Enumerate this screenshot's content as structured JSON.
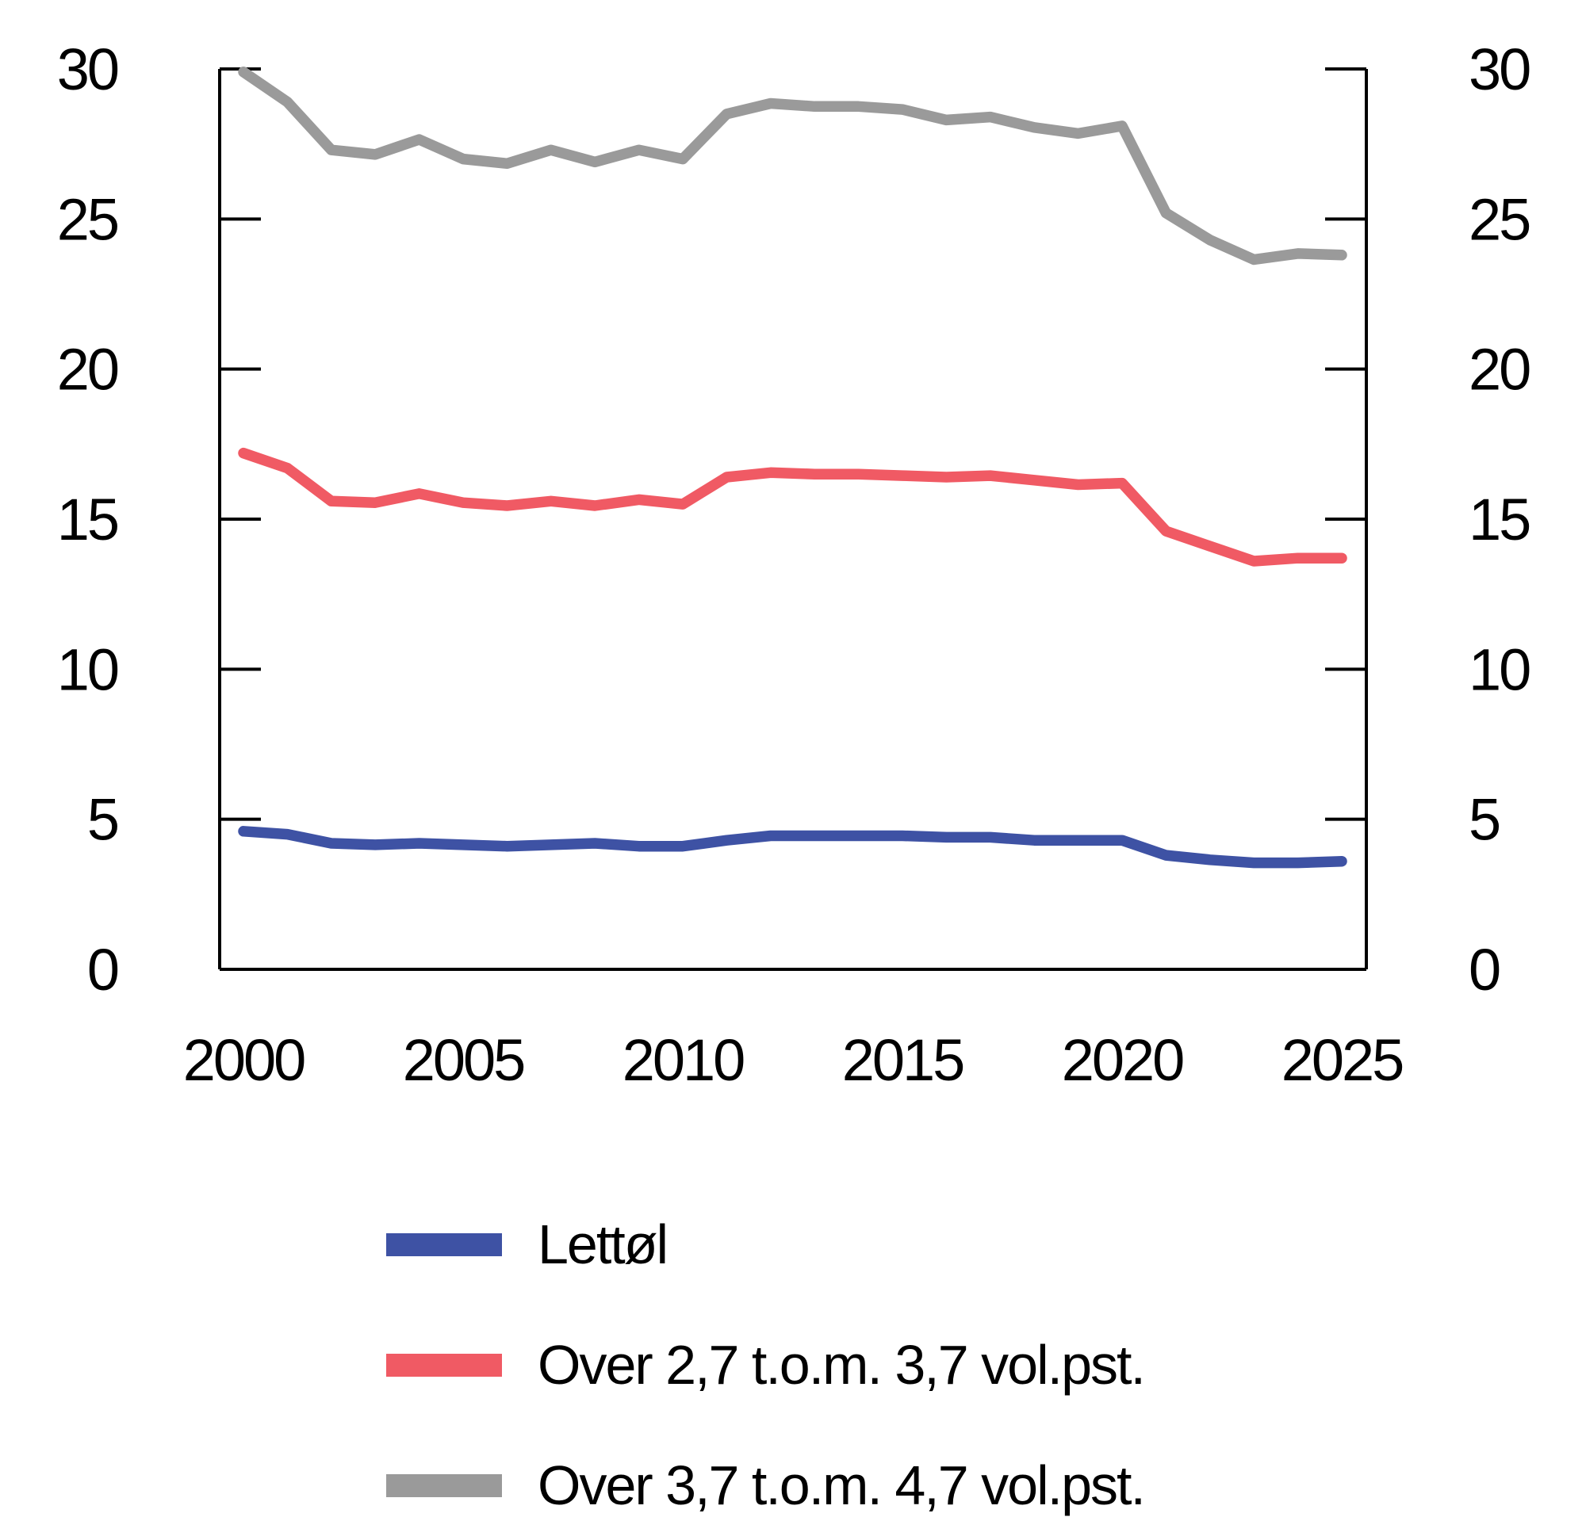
{
  "chart_data": {
    "type": "line",
    "title": "",
    "xlabel": "",
    "ylabel": "",
    "x": [
      2000,
      2001,
      2002,
      2003,
      2004,
      2005,
      2006,
      2007,
      2008,
      2009,
      2010,
      2011,
      2012,
      2013,
      2014,
      2015,
      2016,
      2017,
      2018,
      2019,
      2020,
      2021,
      2022,
      2023,
      2024,
      2025
    ],
    "series": [
      {
        "name": "Lettøl",
        "color": "#3E52A4",
        "values": [
          4.6,
          4.5,
          4.2,
          4.15,
          4.2,
          4.15,
          4.1,
          4.15,
          4.2,
          4.1,
          4.1,
          4.3,
          4.45,
          4.45,
          4.45,
          4.45,
          4.4,
          4.4,
          4.3,
          4.3,
          4.3,
          3.8,
          3.65,
          3.55,
          3.55,
          3.6
        ]
      },
      {
        "name": "Over 2,7 t.o.m. 3,7 vol.pst.",
        "color": "#F05A64",
        "values": [
          17.2,
          16.7,
          15.6,
          15.55,
          15.85,
          15.55,
          15.45,
          15.6,
          15.45,
          15.65,
          15.5,
          16.4,
          16.55,
          16.5,
          16.5,
          16.45,
          16.4,
          16.45,
          16.3,
          16.15,
          16.2,
          14.6,
          14.1,
          13.6,
          13.7,
          13.7
        ]
      },
      {
        "name": "Over 3,7 t.o.m. 4,7 vol.pst.",
        "color": "#9A9A9A",
        "values": [
          29.9,
          28.9,
          27.3,
          27.15,
          27.65,
          27.0,
          26.85,
          27.3,
          26.9,
          27.3,
          27.0,
          28.5,
          28.85,
          28.75,
          28.75,
          28.65,
          28.3,
          28.4,
          28.05,
          27.85,
          28.1,
          25.2,
          24.3,
          23.65,
          23.85,
          23.8
        ]
      }
    ],
    "ylim": [
      0,
      30
    ],
    "yticks": [
      0,
      5,
      10,
      15,
      20,
      25,
      30
    ],
    "xticks": [
      2000,
      2005,
      2010,
      2015,
      2020,
      2025
    ],
    "grid": false,
    "dual_y_axis": true,
    "legend_position": "bottom-left",
    "axis_color": "#000000",
    "line_width": 13.5
  }
}
